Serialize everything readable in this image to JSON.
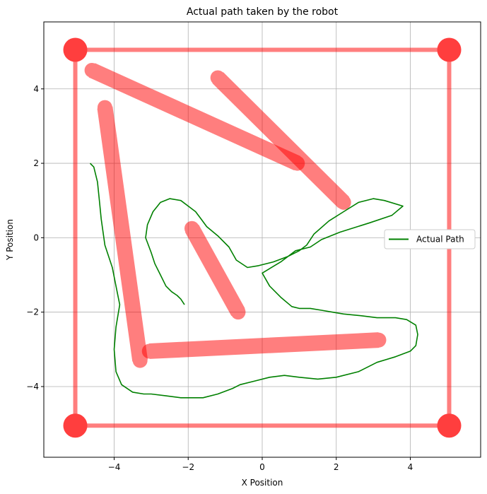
{
  "chart_data": {
    "type": "line",
    "title": "Actual path taken by the robot",
    "xlabel": "X Position",
    "ylabel": "Y Position",
    "xlim": [
      -5.9,
      5.9
    ],
    "ylim": [
      -5.9,
      5.8
    ],
    "xticks": [
      -4,
      -2,
      0,
      2,
      4
    ],
    "yticks": [
      -4,
      -2,
      0,
      2,
      4
    ],
    "xtick_labels": [
      "−4",
      "−2",
      "0",
      "2",
      "4"
    ],
    "ytick_labels": [
      "−4",
      "−2",
      "0",
      "2",
      "4"
    ],
    "grid": true,
    "legend": {
      "position": "right",
      "entries": [
        "Actual Path"
      ]
    },
    "colors": {
      "obstacle": "#ff0000",
      "path": "#008000"
    },
    "obstacles": [
      {
        "x1": -5.05,
        "y1": 5.05,
        "x2": 5.05,
        "y2": 5.05
      },
      {
        "x1": 5.05,
        "y1": 5.05,
        "x2": 5.05,
        "y2": -5.05
      },
      {
        "x1": 5.05,
        "y1": -5.05,
        "x2": -5.05,
        "y2": -5.05
      },
      {
        "x1": -5.05,
        "y1": -5.05,
        "x2": -5.05,
        "y2": 5.05
      },
      {
        "x1": -4.6,
        "y1": 4.5,
        "x2": 0.95,
        "y2": 2.0
      },
      {
        "x1": -1.2,
        "y1": 4.3,
        "x2": 2.2,
        "y2": 0.95
      },
      {
        "x1": -4.25,
        "y1": 3.5,
        "x2": -3.3,
        "y2": -3.3
      },
      {
        "x1": -1.9,
        "y1": 0.25,
        "x2": -0.65,
        "y2": -2.0
      },
      {
        "x1": -3.05,
        "y1": -3.05,
        "x2": 3.15,
        "y2": -2.75
      }
    ],
    "series": [
      {
        "name": "Actual Path",
        "x": [
          -4.65,
          -4.55,
          -4.45,
          -4.4,
          -4.35,
          -4.25,
          -4.05,
          -3.95,
          -3.85,
          -3.95,
          -4.0,
          -3.95,
          -3.8,
          -3.5,
          -3.2,
          -3.0,
          -2.6,
          -2.2,
          -1.6,
          -1.2,
          -0.8,
          -0.6,
          -0.2,
          0.2,
          0.6,
          1.0,
          1.5,
          2.0,
          2.6,
          3.1,
          3.6,
          4.0,
          4.15,
          4.2,
          4.15,
          3.9,
          3.6,
          3.4,
          3.1,
          2.7,
          2.2,
          1.9,
          1.6,
          1.3,
          1.0,
          0.8,
          0.5,
          0.2,
          0.0,
          0.5,
          0.9,
          1.3,
          1.6,
          2.1,
          2.9,
          3.5,
          3.8,
          3.3,
          3.0,
          2.6,
          2.2,
          1.8,
          1.4,
          1.2,
          1.0,
          0.7,
          0.3,
          -0.1,
          -0.4,
          -0.7,
          -0.9,
          -1.2,
          -1.5,
          -1.65,
          -1.8,
          -2.0,
          -2.2,
          -2.5,
          -2.75,
          -2.95,
          -3.1,
          -3.15,
          -3.0,
          -2.9,
          -2.75,
          -2.6,
          -2.45,
          -2.3,
          -2.2,
          -2.1
        ],
        "y": [
          2.0,
          1.9,
          1.5,
          1.0,
          0.5,
          -0.2,
          -0.8,
          -1.3,
          -1.8,
          -2.4,
          -3.0,
          -3.6,
          -3.95,
          -4.15,
          -4.2,
          -4.2,
          -4.25,
          -4.3,
          -4.3,
          -4.2,
          -4.05,
          -3.95,
          -3.85,
          -3.75,
          -3.7,
          -3.75,
          -3.8,
          -3.75,
          -3.6,
          -3.35,
          -3.2,
          -3.05,
          -2.9,
          -2.6,
          -2.35,
          -2.2,
          -2.15,
          -2.15,
          -2.15,
          -2.1,
          -2.05,
          -2.0,
          -1.95,
          -1.9,
          -1.9,
          -1.85,
          -1.6,
          -1.3,
          -0.95,
          -0.65,
          -0.35,
          -0.25,
          -0.05,
          0.15,
          0.4,
          0.6,
          0.85,
          1.0,
          1.05,
          0.95,
          0.7,
          0.45,
          0.1,
          -0.2,
          -0.35,
          -0.5,
          -0.65,
          -0.75,
          -0.8,
          -0.6,
          -0.25,
          0.05,
          0.3,
          0.5,
          0.7,
          0.85,
          1.0,
          1.05,
          0.95,
          0.7,
          0.35,
          0.0,
          -0.4,
          -0.7,
          -1.0,
          -1.3,
          -1.45,
          -1.55,
          -1.65,
          -1.8
        ]
      }
    ]
  }
}
